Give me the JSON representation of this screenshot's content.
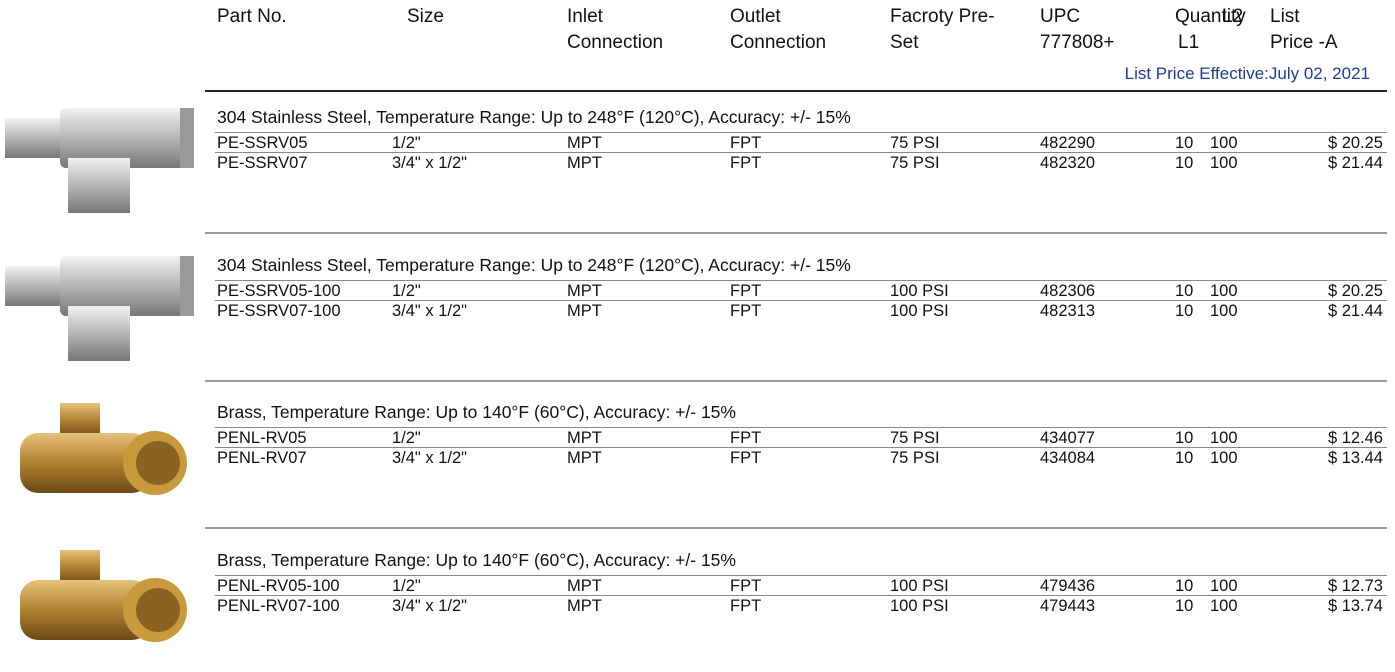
{
  "header": {
    "columns": [
      {
        "lines": [
          "Part No."
        ]
      },
      {
        "lines": [
          "Size"
        ]
      },
      {
        "lines": [
          "Inlet",
          "Connection"
        ]
      },
      {
        "lines": [
          "Outlet",
          "Connection"
        ]
      },
      {
        "lines": [
          "Facroty Pre-",
          "Set"
        ]
      },
      {
        "lines": [
          "UPC",
          "777808+"
        ]
      },
      {
        "lines": [
          "Quantity",
          "L1"
        ]
      },
      {
        "lines": [
          "L2"
        ]
      },
      {
        "lines": [
          "List",
          "Price -A"
        ]
      }
    ],
    "effective": "List Price Effective:July 02, 2021"
  },
  "groups": [
    {
      "description": "304 Stainless Steel, Temperature Range: Up to 248°F (120°C), Accuracy: +/- 15%",
      "rows": [
        [
          "PE-SSRV05",
          "1/2\"",
          "MPT",
          "FPT",
          "75 PSI",
          482290,
          10,
          100,
          "$ 20.25"
        ],
        [
          "PE-SSRV07",
          "3/4\" x 1/2\"",
          "MPT",
          "FPT",
          "75 PSI",
          482320,
          10,
          100,
          "$ 21.44"
        ]
      ]
    },
    {
      "description": "304 Stainless Steel, Temperature Range: Up to 248°F (120°C), Accuracy: +/- 15%",
      "rows": [
        [
          "PE-SSRV05-100",
          "1/2\"",
          "MPT",
          "FPT",
          "100 PSI",
          482306,
          10,
          100,
          "$ 20.25"
        ],
        [
          "PE-SSRV07-100",
          "3/4\" x 1/2\"",
          "MPT",
          "FPT",
          "100 PSI",
          482313,
          10,
          100,
          "$ 21.44"
        ]
      ]
    },
    {
      "description": "Brass, Temperature Range: Up to 140°F (60°C), Accuracy: +/- 15%",
      "rows": [
        [
          "PENL-RV05",
          "1/2\"",
          "MPT",
          "FPT",
          "75 PSI",
          434077,
          10,
          100,
          "$ 12.46"
        ],
        [
          "PENL-RV07",
          "3/4\" x 1/2\"",
          "MPT",
          "FPT",
          "75 PSI",
          434084,
          10,
          100,
          "$ 13.44"
        ]
      ]
    },
    {
      "description": "Brass, Temperature Range: Up to 140°F (60°C), Accuracy: +/- 15%",
      "rows": [
        [
          "PENL-RV05-100",
          "1/2\"",
          "MPT",
          "FPT",
          "100 PSI",
          479436,
          10,
          100,
          "$ 12.73"
        ],
        [
          "PENL-RV07-100",
          "3/4\" x 1/2\"",
          "MPT",
          "FPT",
          "100 PSI",
          479443,
          10,
          100,
          "$ 13.74"
        ]
      ]
    }
  ]
}
